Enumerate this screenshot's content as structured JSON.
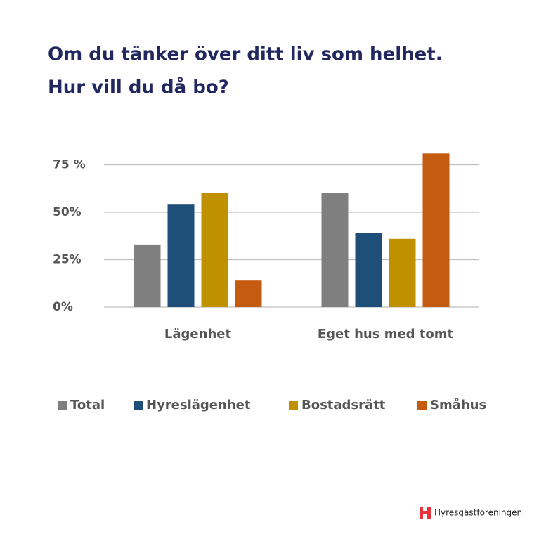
{
  "chart_data": {
    "type": "bar",
    "title": [
      "Om du tänker över ditt liv som helhet.",
      "Hur vill du då bo?"
    ],
    "categories": [
      "Lägenhet",
      "Eget hus med tomt"
    ],
    "series": [
      {
        "name": "Total",
        "color": "#7f7f7f",
        "values": [
          33,
          60
        ]
      },
      {
        "name": "Hyreslägenhet",
        "color": "#1f4e79",
        "values": [
          54,
          39
        ]
      },
      {
        "name": "Bostadsrätt",
        "color": "#bf9000",
        "values": [
          60,
          36
        ]
      },
      {
        "name": "Småhus",
        "color": "#c55a11",
        "values": [
          14,
          81
        ]
      }
    ],
    "ylim": [
      0,
      85
    ],
    "yticks": [
      {
        "value": 0,
        "label": "0%"
      },
      {
        "value": 25,
        "label": "25%"
      },
      {
        "value": 50,
        "label": "50%"
      },
      {
        "value": 75,
        "label": "75 %"
      }
    ],
    "grid": true,
    "legend": "bottom"
  },
  "brand": "Hyresgästföreningen"
}
